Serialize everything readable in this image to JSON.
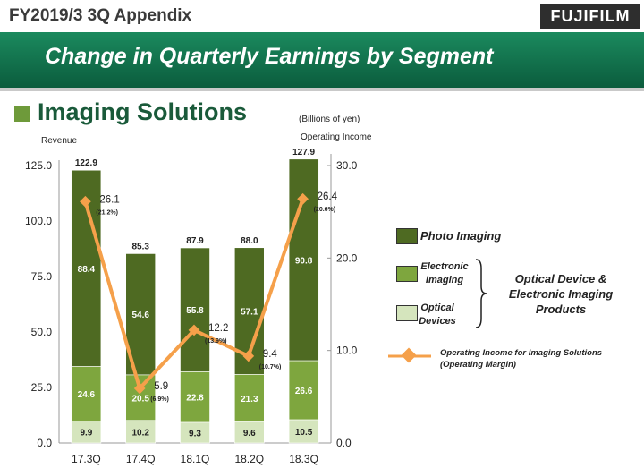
{
  "header": {
    "title": "FY2019/3 3Q  Appendix",
    "logo_text": "FUJIFILM"
  },
  "banner": {
    "title": "Change in Quarterly Earnings by Segment"
  },
  "segment": {
    "title": "Imaging Solutions"
  },
  "units": {
    "text": "(Billions of yen)"
  },
  "axis_labels": {
    "left": "Revenue",
    "right": "Operating Income"
  },
  "legend": {
    "photo": "Photo Imaging",
    "electronic": "Electronic Imaging",
    "optical": "Optical Devices",
    "group_label": "Optical Device & Electronic Imaging Products",
    "line_label": "Operating Income for Imaging Solutions (Operating Margin)"
  },
  "colors": {
    "photo": "#4e6a22",
    "electronic": "#7ea63e",
    "optical": "#d5e5bd",
    "line": "#f5a04a"
  },
  "chart_data": {
    "type": "bar",
    "stacked": true,
    "categories": [
      "17.3Q",
      "17.4Q",
      "18.1Q",
      "18.2Q",
      "18.3Q"
    ],
    "series": [
      {
        "name": "Optical Devices",
        "values": [
          9.9,
          10.2,
          9.3,
          9.6,
          10.5
        ]
      },
      {
        "name": "Electronic Imaging",
        "values": [
          24.6,
          20.5,
          22.8,
          21.3,
          26.6
        ]
      },
      {
        "name": "Photo Imaging",
        "values": [
          88.4,
          54.6,
          55.8,
          57.1,
          90.8
        ]
      }
    ],
    "totals": [
      122.9,
      85.3,
      87.9,
      88.0,
      127.9
    ],
    "ylim": [
      0,
      125
    ],
    "yticks": [
      "0.0",
      "25.0",
      "50.0",
      "75.0",
      "100.0",
      "125.0"
    ],
    "line": {
      "name": "Operating Income for Imaging Solutions (Operating Margin)",
      "values": [
        26.1,
        5.9,
        12.2,
        9.4,
        26.4
      ],
      "margins": [
        "(21.2%)",
        "(6.9%)",
        "(13.9%)",
        "(10.7%)",
        "(20.6%)"
      ]
    },
    "y2lim": [
      0,
      30
    ],
    "y2ticks": [
      "0.0",
      "10.0",
      "20.0",
      "30.0"
    ]
  }
}
